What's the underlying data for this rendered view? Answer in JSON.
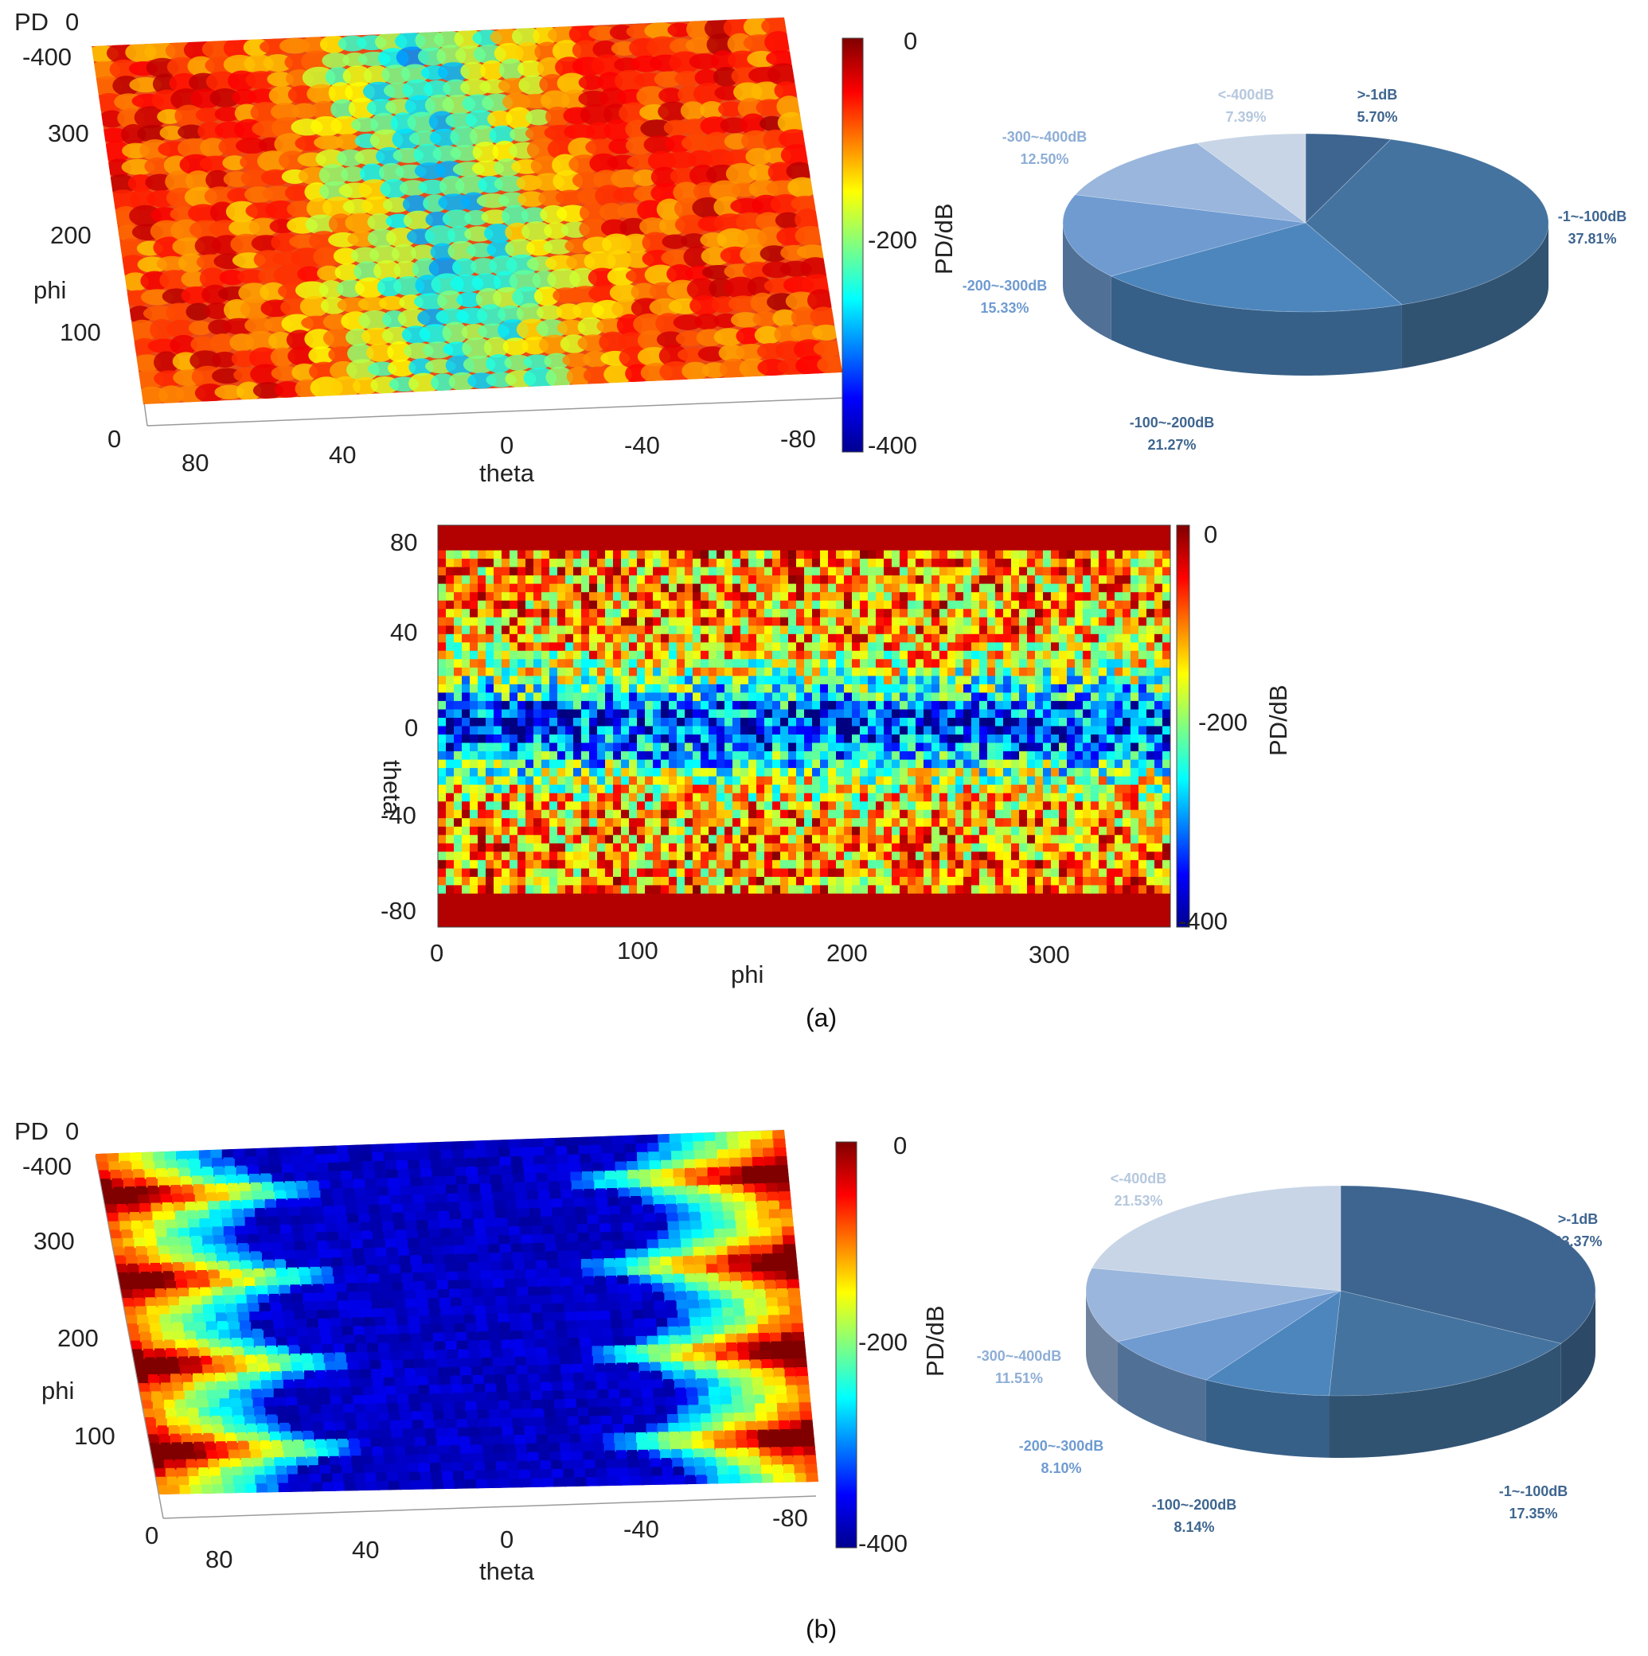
{
  "panels": [
    {
      "id": "a",
      "caption": "(a)",
      "surface3d": {
        "z_label": "PD",
        "z_ticks": [
          "0",
          "-400"
        ],
        "y_label": "phi",
        "y_ticks": [
          "300",
          "200",
          "100",
          "0"
        ],
        "x_label": "theta",
        "x_ticks": [
          "80",
          "40",
          "0",
          "-40",
          "-80"
        ],
        "colorbar_label": "PD/dB",
        "colorbar_ticks": [
          "0",
          "-200",
          "-400"
        ]
      },
      "heatmap2d": {
        "x_label": "phi",
        "x_ticks": [
          "0",
          "100",
          "200",
          "300"
        ],
        "y_label": "theta",
        "y_ticks": [
          "80",
          "40",
          "0",
          "-40",
          "-80"
        ],
        "colorbar_label": "PD/dB",
        "colorbar_ticks": [
          "0",
          "-200",
          "-400"
        ]
      }
    },
    {
      "id": "b",
      "caption": "(b)",
      "surface3d": {
        "z_label": "PD",
        "z_ticks": [
          "0",
          "-400"
        ],
        "y_label": "phi",
        "y_ticks": [
          "300",
          "200",
          "100",
          "0"
        ],
        "x_label": "theta",
        "x_ticks": [
          "80",
          "40",
          "0",
          "-40",
          "-80"
        ],
        "colorbar_label": "PD/dB",
        "colorbar_ticks": [
          "0",
          "-200",
          "-400"
        ]
      }
    }
  ],
  "chart_data": [
    {
      "type": "heatmap",
      "panel": "a",
      "view": "3d-surface",
      "xlabel": "theta",
      "ylabel": "phi",
      "zlabel": "PD",
      "xlim": [
        90,
        -90
      ],
      "ylim": [
        0,
        360
      ],
      "zlim": [
        -400,
        0
      ],
      "colorbar": {
        "label": "PD/dB",
        "range": [
          -400,
          0
        ],
        "colormap": "jet"
      }
    },
    {
      "type": "pie",
      "panel": "a",
      "categories": [
        ">-1dB",
        "-1~-100dB",
        "-100~-200dB",
        "-200~-300dB",
        "-300~-400dB",
        "<-400dB"
      ],
      "values": [
        5.7,
        37.81,
        21.27,
        15.33,
        12.5,
        7.39
      ],
      "labels": [
        "5.70%",
        "37.81%",
        "21.27%",
        "15.33%",
        "12.50%",
        "7.39%"
      ],
      "colors": [
        "#3e6590",
        "#44739f",
        "#4d86bd",
        "#6f9bd1",
        "#9ab6dc",
        "#c8d5e6"
      ]
    },
    {
      "type": "heatmap",
      "panel": "a",
      "view": "2d",
      "xlabel": "phi",
      "ylabel": "theta",
      "xlim": [
        0,
        360
      ],
      "ylim": [
        -90,
        90
      ],
      "colorbar": {
        "label": "PD/dB",
        "range": [
          -400,
          0
        ],
        "colormap": "jet"
      }
    },
    {
      "type": "heatmap",
      "panel": "b",
      "view": "3d-surface",
      "xlabel": "theta",
      "ylabel": "phi",
      "zlabel": "PD",
      "xlim": [
        90,
        -90
      ],
      "ylim": [
        0,
        360
      ],
      "zlim": [
        -400,
        0
      ],
      "colorbar": {
        "label": "PD/dB",
        "range": [
          -400,
          0
        ],
        "colormap": "jet"
      }
    },
    {
      "type": "pie",
      "panel": "b",
      "categories": [
        ">-1dB",
        "-1~-100dB",
        "-100~-200dB",
        "-200~-300dB",
        "-300~-400dB",
        "<-400dB"
      ],
      "values": [
        33.37,
        17.35,
        8.14,
        8.1,
        11.51,
        21.53
      ],
      "labels": [
        "33.37%",
        "17.35%",
        "8.14%",
        "8.10%",
        "11.51%",
        "21.53%"
      ],
      "colors": [
        "#3e6590",
        "#44739f",
        "#4d86bd",
        "#6f9bd1",
        "#9ab6dc",
        "#c8d5e6"
      ]
    }
  ]
}
